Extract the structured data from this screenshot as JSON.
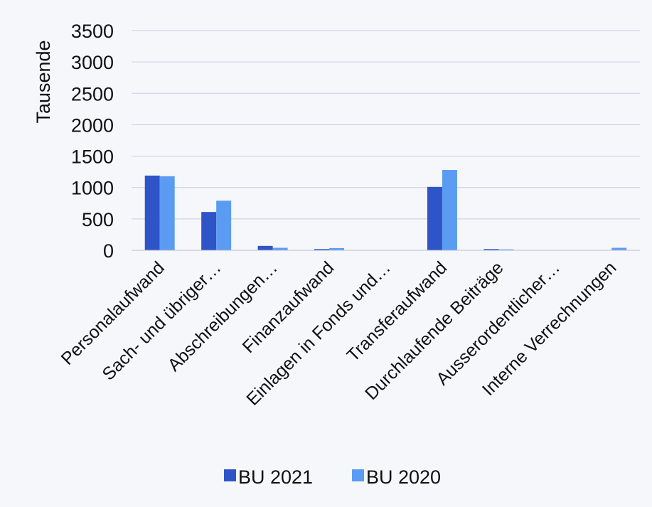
{
  "chart_data": {
    "type": "bar",
    "categories": [
      "Personalaufwand",
      "Sach- und übriger…",
      "Abschreibungen…",
      "Finanzaufwand",
      "Einlagen in Fonds und…",
      "Transferaufwand",
      "Durchlaufende Beiträge",
      "Ausserordentlicher…",
      "Interne Verrechnungen"
    ],
    "series": [
      {
        "name": "BU 2021",
        "color": "#2e54c8",
        "values": [
          1190,
          610,
          70,
          20,
          0,
          1010,
          20,
          0,
          0
        ]
      },
      {
        "name": "BU 2020",
        "color": "#5b9cf2",
        "values": [
          1180,
          790,
          40,
          35,
          0,
          1280,
          15,
          0,
          40
        ]
      }
    ],
    "ylabel": "Tausende",
    "yticks": [
      0,
      500,
      1000,
      1500,
      2000,
      2500,
      3000,
      3500
    ],
    "ylim": [
      0,
      3500
    ],
    "grid": true,
    "legend_position": "bottom"
  }
}
